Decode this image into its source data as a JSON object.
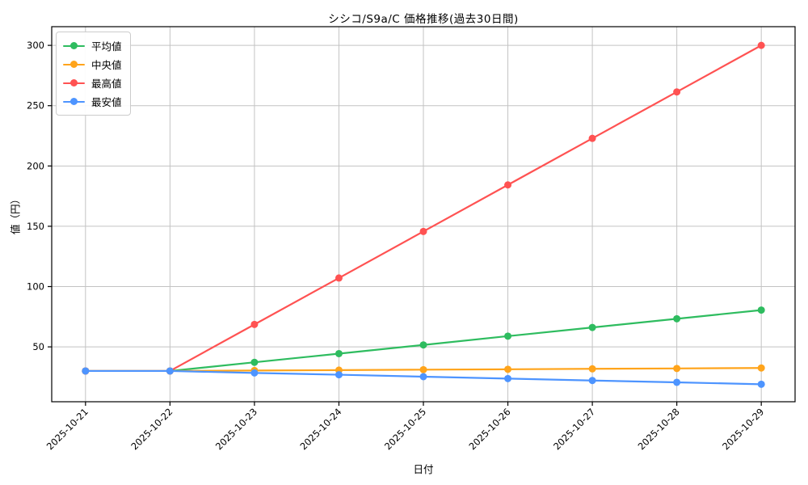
{
  "chart_data": {
    "type": "line",
    "title": "シシコ/S9a/C 価格推移(過去30日間)",
    "xlabel": "日付",
    "ylabel": "値（円）",
    "x": [
      "2025-10-21",
      "2025-10-22",
      "2025-10-23",
      "2025-10-24",
      "2025-10-25",
      "2025-10-26",
      "2025-10-27",
      "2025-10-28",
      "2025-10-29"
    ],
    "series": [
      {
        "name": "平均値",
        "key": "average",
        "color": "#2ebc5f",
        "values": [
          30,
          30,
          37.2,
          44.4,
          51.6,
          58.9,
          66.1,
          73.3,
          80.5
        ]
      },
      {
        "name": "中央値",
        "key": "median",
        "color": "#ffa41b",
        "values": [
          30,
          30,
          30.4,
          30.7,
          31.1,
          31.4,
          31.8,
          32.1,
          32.5
        ]
      },
      {
        "name": "最高値",
        "key": "highest",
        "color": "#ff5252",
        "values": [
          30,
          30,
          68.6,
          107.1,
          145.7,
          184.3,
          222.9,
          261.4,
          300
        ]
      },
      {
        "name": "最安値",
        "key": "lowest",
        "color": "#4d94ff",
        "values": [
          30,
          30,
          28.4,
          26.9,
          25.3,
          23.7,
          22.1,
          20.6,
          19
        ]
      }
    ],
    "yticks": [
      50,
      100,
      150,
      200,
      250,
      300
    ],
    "ylim": [
      4.5,
      315.5
    ],
    "grid": true,
    "grid_color": "#c3c3c3",
    "frame_color": "#000000",
    "legend_position": "upper left"
  }
}
